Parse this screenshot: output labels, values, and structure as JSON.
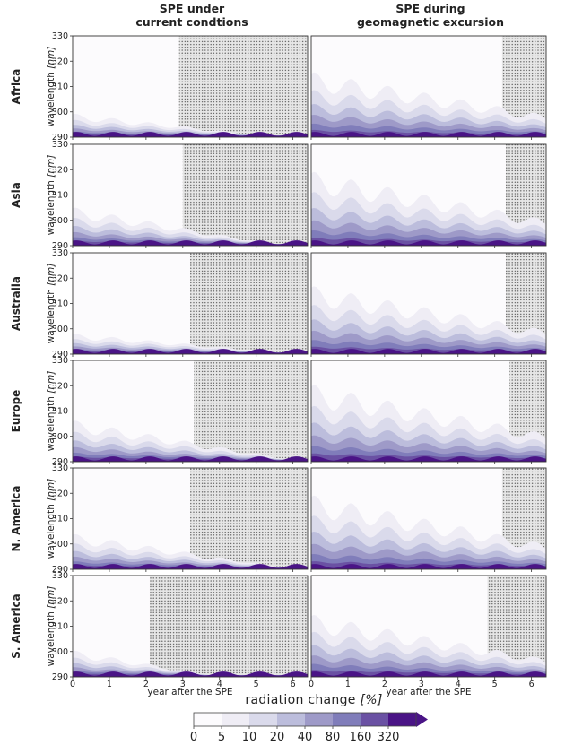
{
  "column_titles": [
    {
      "line1": "SPE under",
      "line2": "current condtions"
    },
    {
      "line1": "SPE during",
      "line2": "geomagnetic excursion"
    }
  ],
  "colorbar": {
    "label": "radiation change",
    "unit": "[%]",
    "ticks": [
      "0",
      "5",
      "10",
      "20",
      "40",
      "80",
      "160",
      "320"
    ],
    "colors": [
      "#fcfbfd",
      "#efedf5",
      "#dadaeb",
      "#bcbddc",
      "#9e9ac8",
      "#807dba",
      "#6a51a3",
      "#4a1486"
    ]
  },
  "chart_data": {
    "type": "heatmap",
    "description_variable": "radiation change [%]",
    "xlabel": "year after the SPE",
    "ylabel": "wavelength",
    "ylabel_unit": "[nm]",
    "xlim": [
      0,
      6.4
    ],
    "ylim": [
      290,
      330
    ],
    "xticks": [
      "0",
      "1",
      "2",
      "3",
      "4",
      "5",
      "6"
    ],
    "yticks": [
      "290",
      "300",
      "310",
      "320",
      "330"
    ],
    "levels": [
      0,
      5,
      10,
      20,
      40,
      80,
      160,
      320
    ],
    "rows": [
      "Africa",
      "Asia",
      "Australia",
      "Europe",
      "N. America",
      "S. America"
    ],
    "columns": [
      "SPE under current condtions",
      "SPE during geomagnetic excursion"
    ],
    "panels": [
      {
        "region": "Africa",
        "condition": "current",
        "max_band_wavelength": 298,
        "decay_year": 2.9
      },
      {
        "region": "Africa",
        "condition": "excursion",
        "max_band_wavelength": 312,
        "decay_year": 5.2
      },
      {
        "region": "Asia",
        "condition": "current",
        "max_band_wavelength": 303,
        "decay_year": 3.0
      },
      {
        "region": "Asia",
        "condition": "excursion",
        "max_band_wavelength": 315,
        "decay_year": 5.3
      },
      {
        "region": "Australia",
        "condition": "current",
        "max_band_wavelength": 297,
        "decay_year": 3.2
      },
      {
        "region": "Australia",
        "condition": "excursion",
        "max_band_wavelength": 313,
        "decay_year": 5.3
      },
      {
        "region": "Europe",
        "condition": "current",
        "max_band_wavelength": 304,
        "decay_year": 3.3
      },
      {
        "region": "Europe",
        "condition": "excursion",
        "max_band_wavelength": 316,
        "decay_year": 5.4
      },
      {
        "region": "N. America",
        "condition": "current",
        "max_band_wavelength": 302,
        "decay_year": 3.2
      },
      {
        "region": "N. America",
        "condition": "excursion",
        "max_band_wavelength": 315,
        "decay_year": 5.2
      },
      {
        "region": "S. America",
        "condition": "current",
        "max_band_wavelength": 299,
        "decay_year": 2.1
      },
      {
        "region": "S. America",
        "condition": "excursion",
        "max_band_wavelength": 311,
        "decay_year": 4.8
      }
    ]
  }
}
